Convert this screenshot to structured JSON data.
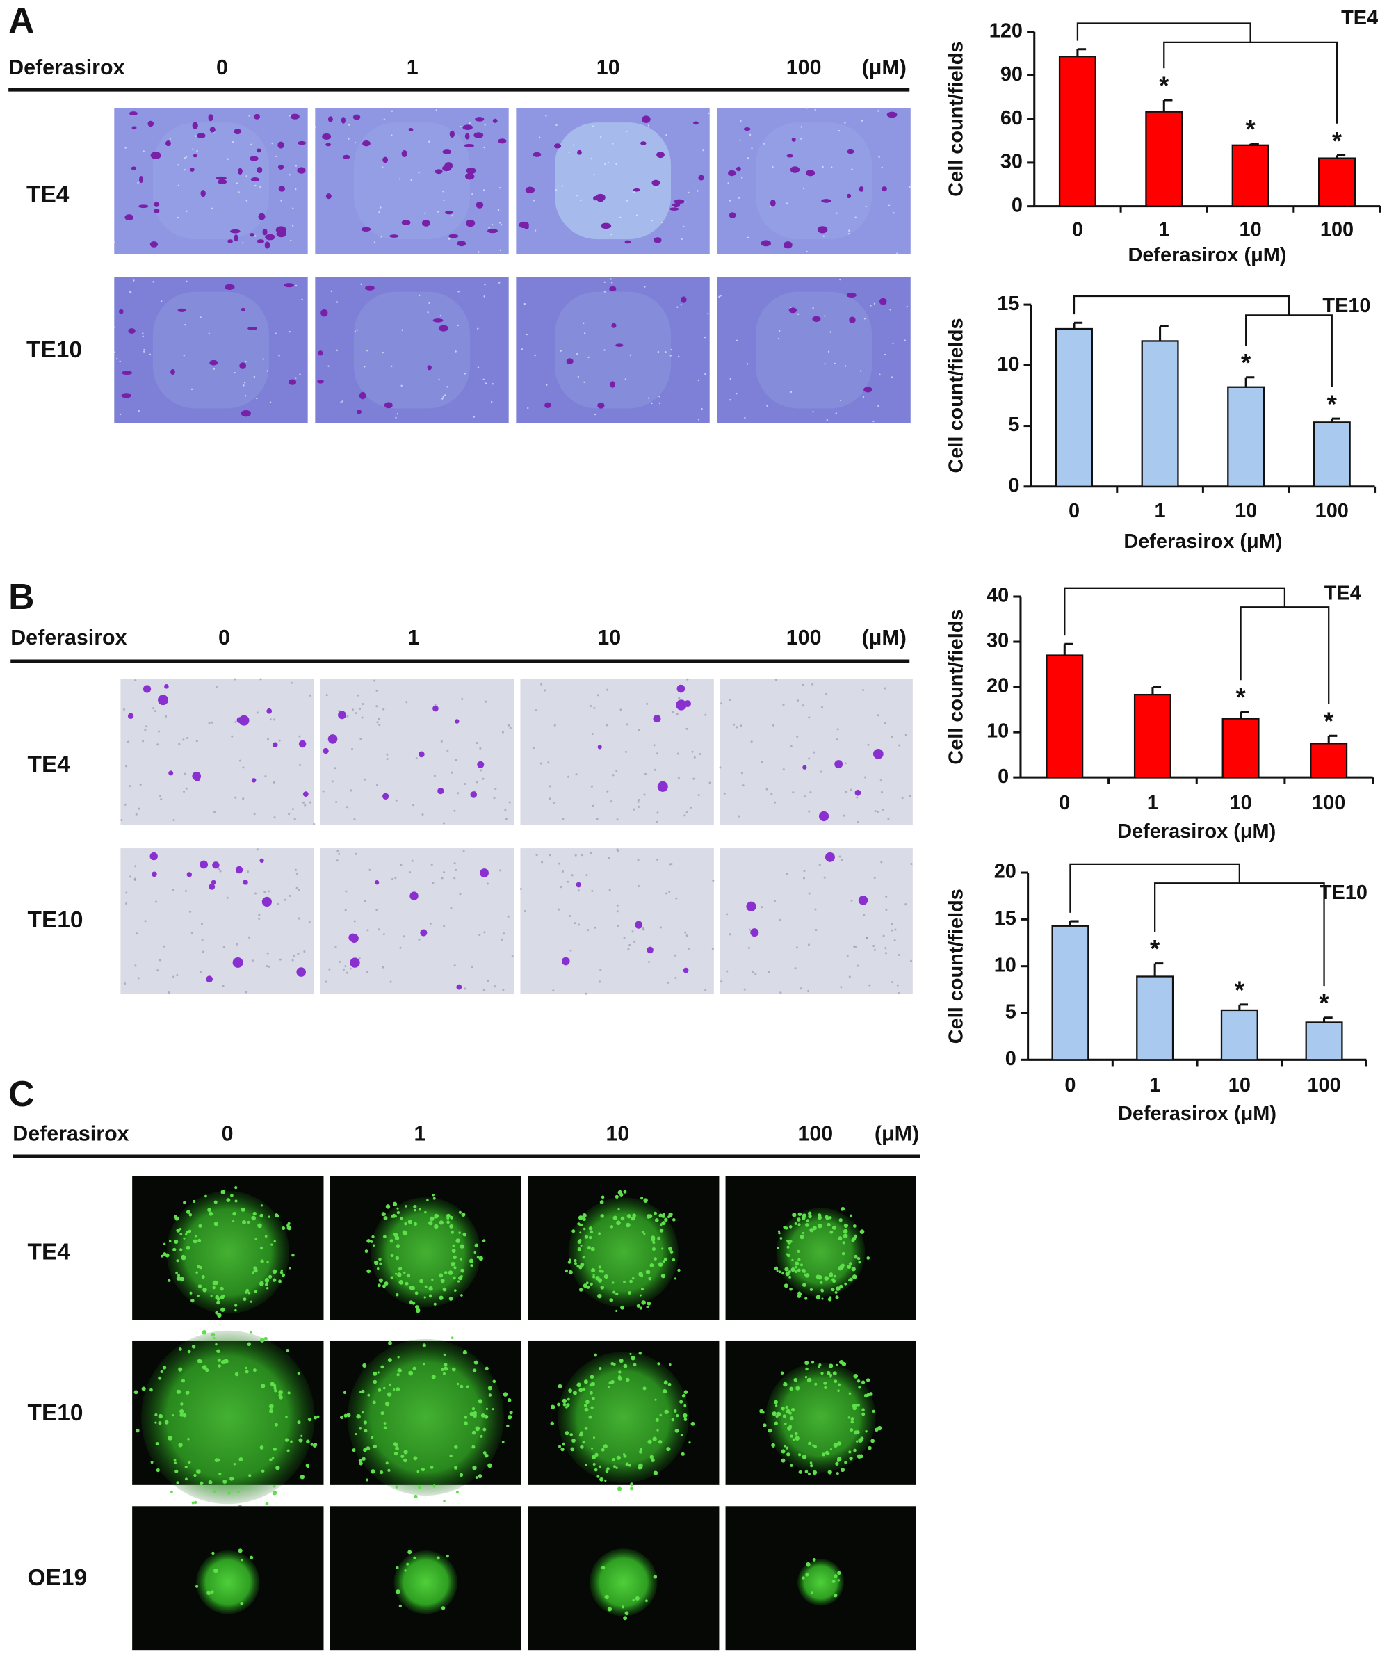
{
  "panels": [
    {
      "letter": "A",
      "drug": "Deferasirox",
      "doses": [
        "0",
        "1",
        "10",
        "100"
      ],
      "unit": "(μM)",
      "rows": [
        "TE4",
        "TE10"
      ]
    },
    {
      "letter": "B",
      "drug": "Deferasirox",
      "doses": [
        "0",
        "1",
        "10",
        "100"
      ],
      "unit": "(μM)",
      "rows": [
        "TE4",
        "TE10"
      ]
    },
    {
      "letter": "C",
      "drug": "Deferasirox",
      "doses": [
        "0",
        "1",
        "10",
        "100"
      ],
      "unit": "(μM)",
      "rows": [
        "TE4",
        "TE10",
        "OE19"
      ]
    }
  ],
  "chart_data": [
    {
      "type": "bar",
      "title": "TE4",
      "y_label": "Cell count/fields",
      "x_label": "Deferasirox (μM)",
      "categories": [
        "0",
        "1",
        "10",
        "100"
      ],
      "values": [
        103,
        65,
        42,
        33
      ],
      "errors": [
        5,
        8,
        1,
        2
      ],
      "significance": [
        null,
        "*",
        "*",
        "*"
      ],
      "color": "#ff0000",
      "ylim": [
        0,
        120
      ],
      "yticks": [
        0,
        30,
        60,
        90,
        120
      ]
    },
    {
      "type": "bar",
      "title": "TE10",
      "y_label": "Cell count/fields",
      "x_label": "Deferasirox (μM)",
      "categories": [
        "0",
        "1",
        "10",
        "100"
      ],
      "values": [
        13,
        12,
        8.2,
        5.3
      ],
      "errors": [
        0.5,
        1.2,
        0.8,
        0.3
      ],
      "significance": [
        null,
        null,
        "*",
        "*"
      ],
      "color": "#a9c9ee",
      "ylim": [
        0,
        15
      ],
      "yticks": [
        0,
        5,
        10,
        15
      ]
    },
    {
      "type": "bar",
      "title": "TE4",
      "y_label": "Cell count/fields",
      "x_label": "Deferasirox (μM)",
      "categories": [
        "0",
        "1",
        "10",
        "100"
      ],
      "values": [
        27,
        18.3,
        13,
        7.5
      ],
      "errors": [
        2.5,
        1.7,
        1.5,
        1.7
      ],
      "significance": [
        null,
        null,
        "*",
        "*"
      ],
      "color": "#ff0000",
      "ylim": [
        0,
        40
      ],
      "yticks": [
        0,
        10,
        20,
        30,
        40
      ]
    },
    {
      "type": "bar",
      "title": "TE10",
      "y_label": "Cell count/fields",
      "x_label": "Deferasirox (μM)",
      "categories": [
        "0",
        "1",
        "10",
        "100"
      ],
      "values": [
        14.3,
        8.9,
        5.3,
        4
      ],
      "errors": [
        0.5,
        1.4,
        0.6,
        0.5
      ],
      "significance": [
        null,
        "*",
        "*",
        "*"
      ],
      "color": "#a9c9ee",
      "ylim": [
        0,
        20
      ],
      "yticks": [
        0,
        5,
        10,
        15,
        20
      ]
    }
  ]
}
